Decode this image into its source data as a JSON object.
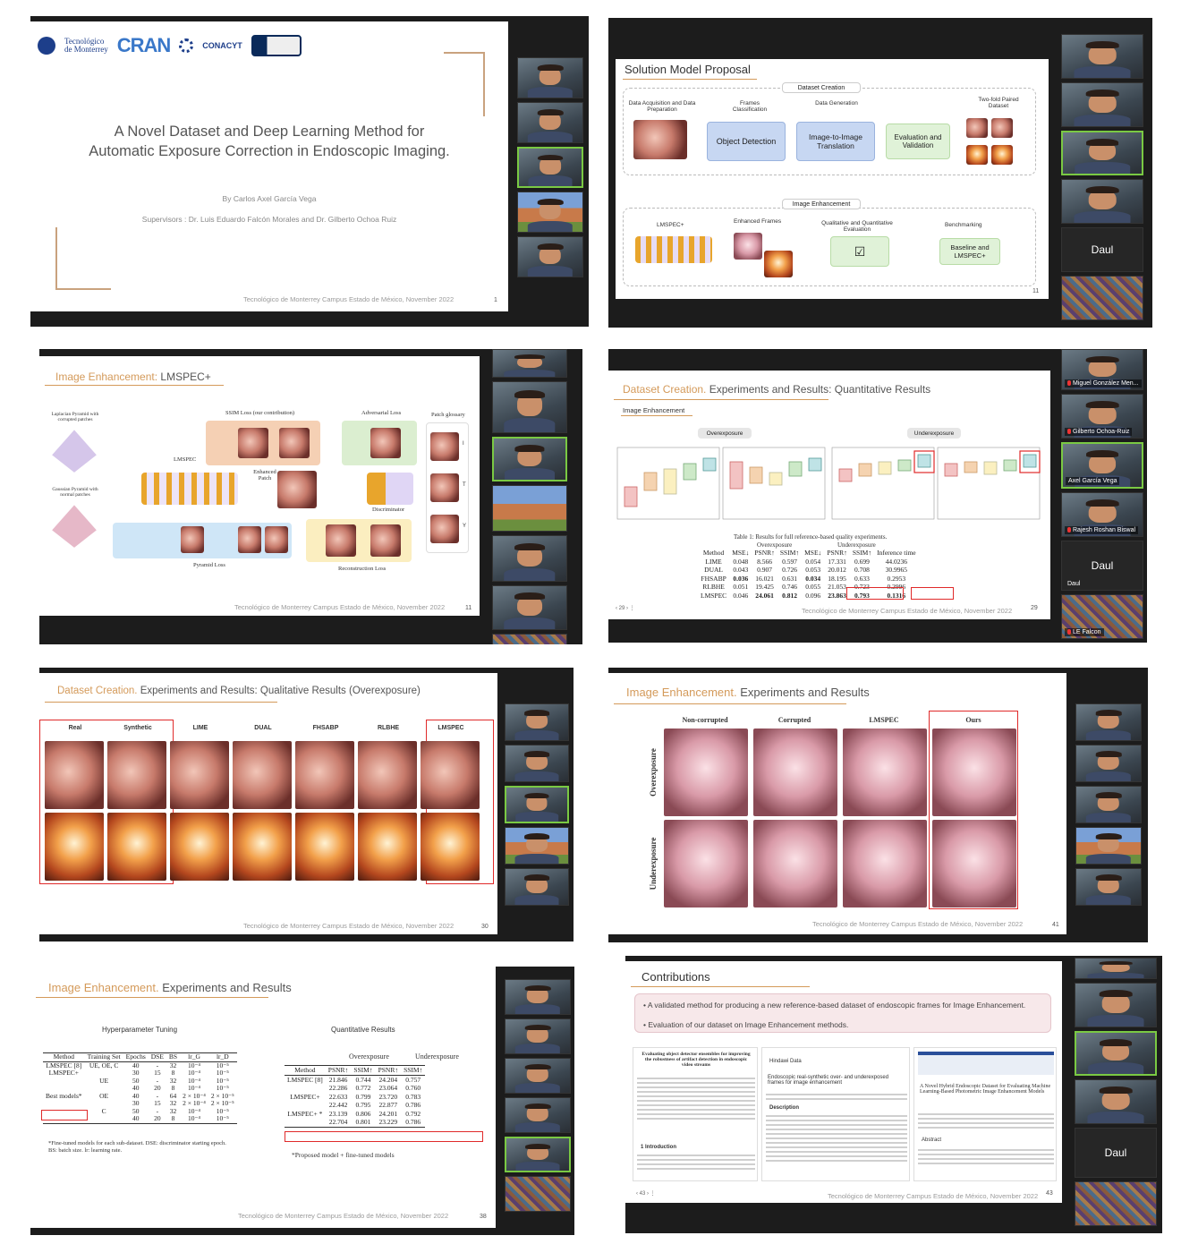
{
  "p1": {
    "logos": [
      "Tecnológico",
      "de Monterrey",
      "CRAN",
      "CONACYT"
    ],
    "title1": "A Novel Dataset and Deep Learning Method for",
    "title2": "Automatic Exposure Correction in Endoscopic Imaging.",
    "author": "By Carlos Axel García Vega",
    "supervisors": "Supervisors : Dr. Luis Eduardo Falcón Morales and Dr. Gilberto Ochoa Ruiz",
    "footer": "Tecnológico de Monterrey Campus Estado de México, November 2022",
    "page": "1"
  },
  "p2": {
    "title": "Solution Model Proposal",
    "group1": "Dataset Creation",
    "h_acq": "Data Acquisition and Data Preparation",
    "h_frames": "Frames Classification",
    "h_data": "Data Generation",
    "h_paired": "Two-fold Paired Dataset",
    "box_obj": "Object Detection",
    "box_i2i": "Image-to-Image Translation",
    "box_eval": "Evaluation and Validation",
    "group2": "Image Enhancement",
    "h_lmspec": "LMSPEC+",
    "h_enh": "Enhanced Frames",
    "h_qual": "Qualitative and Quantitative Evaluation",
    "h_bench": "Benchmarking",
    "box_base": "Baseline and LMSPEC+",
    "page": "11",
    "participant": "Daul"
  },
  "p3": {
    "title_a": "Image Enhancement:",
    "title_b": " LMSPEC+",
    "lap": "Laplacian Pyramid with corrupted patches",
    "gauss": "Gaussian Pyramid with normal patches",
    "ssim": "SSIM Loss (our contribution)",
    "adv": "Adversarial Loss",
    "glossary": "Patch glossary",
    "lmspec": "LMSPEC",
    "enh": "Enhanced Patch",
    "disc": "Discriminator",
    "pyr": "Pyramid Loss",
    "rec": "Reconstruction Loss",
    "g_labels": [
      "I",
      "T",
      "Y"
    ],
    "footer": "Tecnológico de Monterrey Campus Estado de México, November 2022",
    "page": "11"
  },
  "p4": {
    "title_a": "Dataset Creation.",
    "title_b": " Experiments and Results:",
    "title_c": " Quantitative Results",
    "sub": "Image Enhancement",
    "over": "Overexposure",
    "under": "Underexposure",
    "caption": "Table 1: Results for full reference-based quality experiments.",
    "headers": [
      "Method",
      "MSE↓",
      "PSNR↑",
      "SSIM↑",
      "MSE↓",
      "PSNR↑",
      "SSIM↑",
      "Inference time"
    ],
    "rows": [
      [
        "LIME",
        "0.048",
        "8.566",
        "0.597",
        "0.054",
        "17.331",
        "0.699",
        "44.0236"
      ],
      [
        "DUAL",
        "0.043",
        "0.907",
        "0.726",
        "0.053",
        "20.012",
        "0.708",
        "30.9965"
      ],
      [
        "FHSABP",
        "0.036",
        "16.021",
        "0.631",
        "0.034",
        "18.195",
        "0.633",
        "0.2953"
      ],
      [
        "RLBHE",
        "0.051",
        "19.425",
        "0.746",
        "0.055",
        "21.053",
        "0.723",
        "0.2996"
      ],
      [
        "LMSPEC",
        "0.046",
        "24.061",
        "0.812",
        "0.096",
        "23.863",
        "0.793",
        "0.1316"
      ]
    ],
    "pager": "‹   29   ›   ⋮",
    "footer": "Tecnológico de Monterrey Campus Estado de México, November 2022",
    "page": "29",
    "names": [
      "Miguel González Men...",
      "Gilberto Ochoa-Ruiz",
      "Axel García Vega",
      "Rajesh Roshan Biswal",
      "Daul",
      "LE Falcon"
    ],
    "daul_small": "Daul"
  },
  "p5": {
    "title_a": "Dataset Creation.",
    "title_b": " Experiments and Results:",
    "title_c": " Qualitative Results (Overexposure)",
    "cols": [
      "Real",
      "Synthetic",
      "LIME",
      "DUAL",
      "FHSABP",
      "RLBHE",
      "LMSPEC"
    ],
    "footer": "Tecnológico de Monterrey Campus Estado de México, November 2022",
    "page": "30"
  },
  "p6": {
    "title_a": "Image Enhancement.",
    "title_b": " Experiments and Results",
    "cols": [
      "Non-corrupted",
      "Corrupted",
      "LMSPEC",
      "Ours"
    ],
    "rows": [
      "Overexposure",
      "Underexposure"
    ],
    "footer": "Tecnológico de Monterrey Campus Estado de México, November 2022",
    "page": "41"
  },
  "p7": {
    "title_a": "Image Enhancement.",
    "title_b": " Experiments and Results",
    "hyper": "Hyperparameter Tuning",
    "quant": "Quantitative Results",
    "h_headers": [
      "Method",
      "Training Set",
      "Epochs",
      "DSE",
      "BS",
      "lr_G",
      "lr_D"
    ],
    "h_rows": [
      [
        "LMSPEC [8]",
        "UE, OE, C",
        "40",
        "-",
        "32",
        "10⁻⁴",
        "10⁻⁵"
      ],
      [
        "LMSPEC+",
        "",
        "30",
        "15",
        "8",
        "10⁻⁴",
        "10⁻⁵"
      ],
      [
        "",
        "UE",
        "50",
        "-",
        "32",
        "10⁻⁴",
        "10⁻⁵"
      ],
      [
        "",
        "",
        "40",
        "20",
        "8",
        "10⁻⁴",
        "10⁻⁵"
      ],
      [
        "Best models*",
        "OE",
        "40",
        "-",
        "64",
        "2 × 10⁻⁴",
        "2 × 10⁻⁵"
      ],
      [
        "",
        "",
        "30",
        "15",
        "32",
        "2 × 10⁻⁴",
        "2 × 10⁻⁵"
      ],
      [
        "",
        "C",
        "50",
        "-",
        "32",
        "10⁻⁴",
        "10⁻⁵"
      ],
      [
        "",
        "",
        "40",
        "20",
        "8",
        "10⁻⁴",
        "10⁻⁵"
      ]
    ],
    "h_note1": "*Fine-tuned models for each sub-dataset. DSE: discriminator starting epoch.",
    "h_note2": "BS: batch size. lr: learning rate.",
    "q_groups": [
      "Overexposure",
      "Underexposure"
    ],
    "q_headers": [
      "Method",
      "PSNR↑",
      "SSIM↑",
      "PSNR↑",
      "SSIM↑"
    ],
    "q_rows": [
      [
        "LMSPEC [8]",
        "21.846",
        "0.744",
        "24.204",
        "0.757"
      ],
      [
        "",
        "22.286",
        "0.772",
        "23.064",
        "0.760"
      ],
      [
        "LMSPEC+",
        "22.633",
        "0.799",
        "23.720",
        "0.783"
      ],
      [
        "",
        "22.442",
        "0.795",
        "22.877",
        "0.786"
      ],
      [
        "LMSPEC+ *",
        "23.139",
        "0.806",
        "24.201",
        "0.792"
      ],
      [
        "",
        "22.704",
        "0.801",
        "23.229",
        "0.786"
      ]
    ],
    "q_note": "*Proposed model + fine-tuned models",
    "footer": "Tecnológico de Monterrey Campus Estado de México, November 2022",
    "page": "38"
  },
  "p8": {
    "title": "Contributions",
    "b1": "A validated method for producing a new reference-based dataset of endoscopic frames for Image Enhancement.",
    "b2": "Evaluation of our dataset on Image Enhancement methods.",
    "paper1_title": "Evaluating object detector ensembles for improving the robustness of artifact detection in endoscopic video streams",
    "paper1_intro": "1 Introduction",
    "paper2_brand": "Hindawi Data",
    "paper2_title": "Endoscopic real-synthetic over- and underexposed frames for image enhancement",
    "paper2_desc": "Description",
    "paper3_title": "A Novel Hybrid Endoscopic Dataset for Evaluating Machine Learning-Based Photometric Image Enhancement Models",
    "paper3_abs": "Abstract",
    "pager": "‹   43   ›   ⋮",
    "footer": "Tecnológico de Monterrey Campus Estado de México, November 2022",
    "page": "43",
    "participant": "Daul"
  }
}
